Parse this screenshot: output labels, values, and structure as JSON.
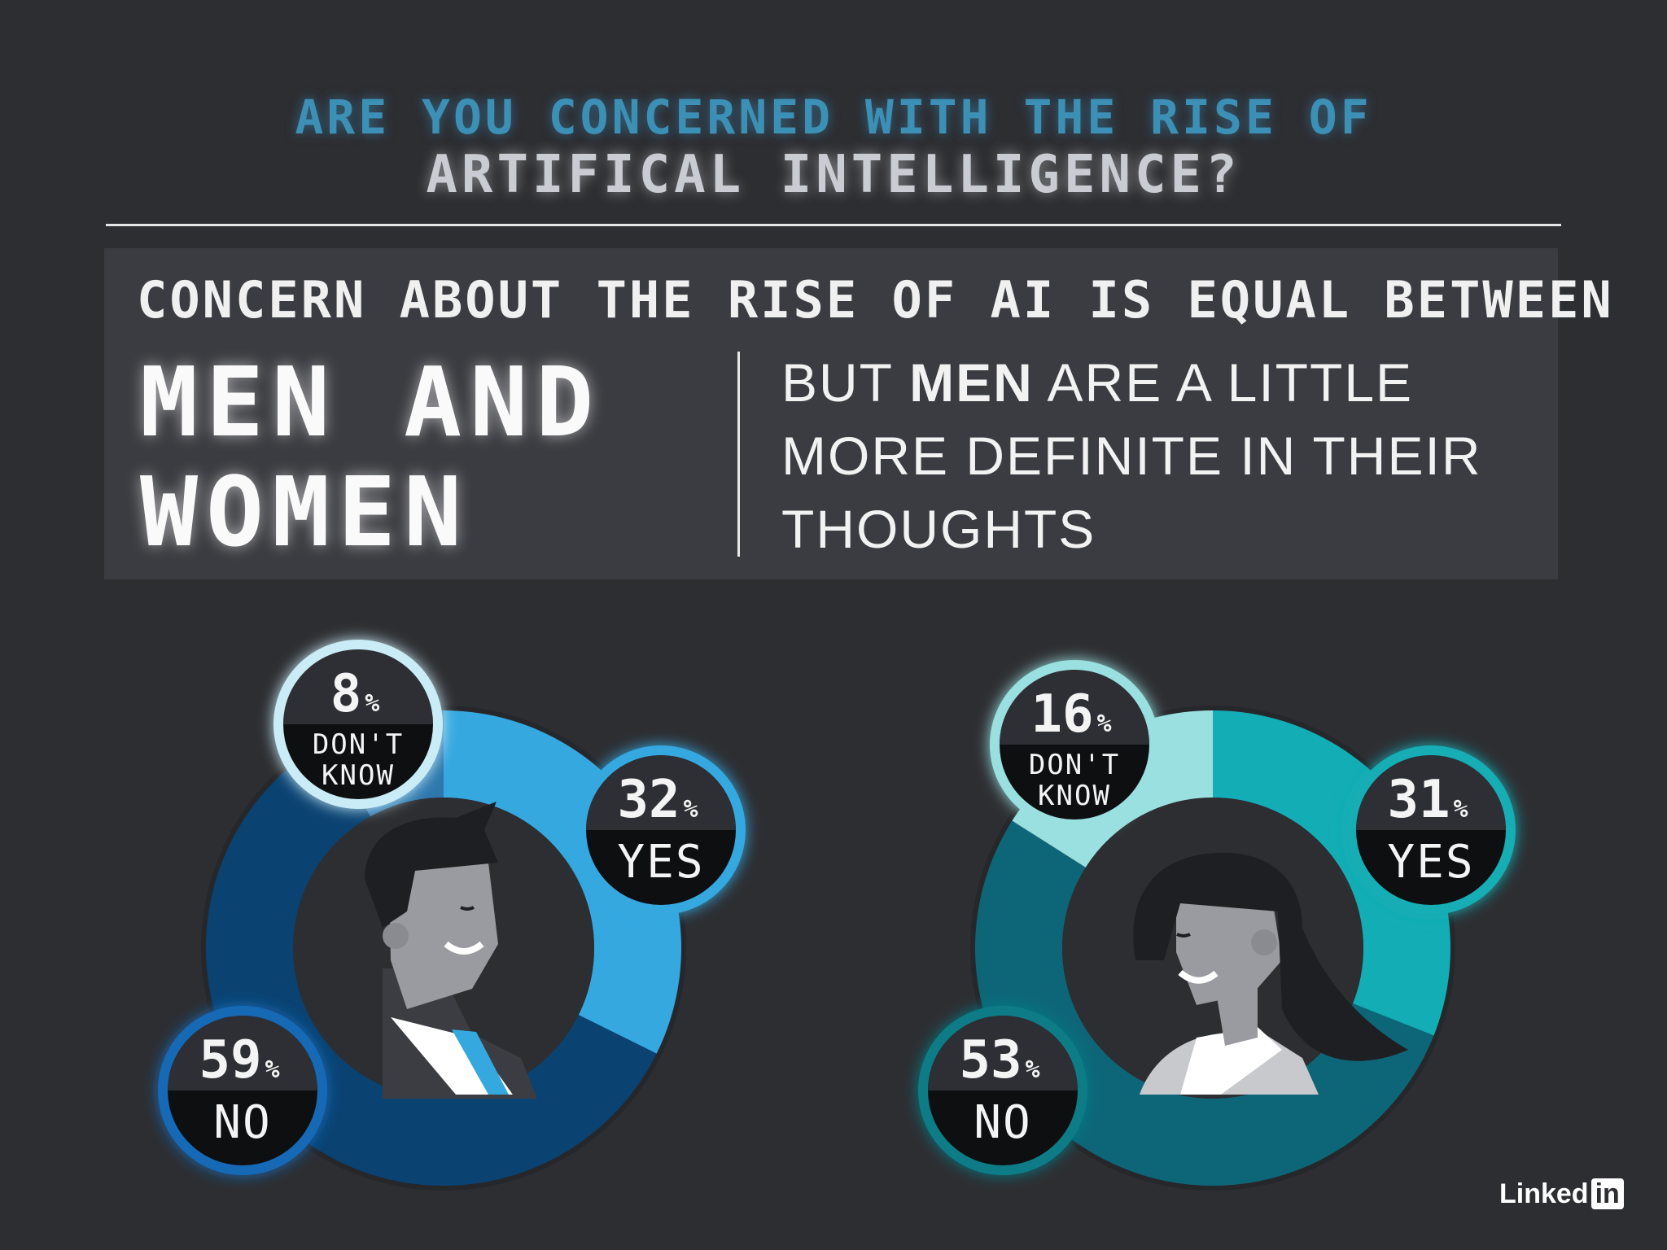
{
  "header": {
    "question_line1": "ARE YOU CONCERNED WITH THE RISE OF",
    "question_line2": "ARTIFICAL INTELLIGENCE?"
  },
  "panel": {
    "headline": "CONCERN ABOUT THE RISE OF AI IS EQUAL BETWEEN",
    "big_line1": "MEN AND",
    "big_line2": "WOMEN",
    "sub_before": "BUT ",
    "sub_bold": "MEN",
    "sub_after": " ARE A LITTLE MORE DEFINITE IN THEIR THOUGHTS"
  },
  "chart_data": [
    {
      "type": "pie",
      "subject": "men",
      "categories": [
        "YES",
        "NO",
        "DON'T KNOW"
      ],
      "values": [
        32,
        59,
        8
      ],
      "unit": "%",
      "colors": [
        "#35a8e0",
        "#0a4272",
        "#2d77ad"
      ],
      "bubble_colors": [
        "#35a8e0",
        "#1869b5",
        "#c9ecf6"
      ]
    },
    {
      "type": "pie",
      "subject": "women",
      "categories": [
        "YES",
        "NO",
        "DON'T KNOW"
      ],
      "values": [
        31,
        53,
        16
      ],
      "unit": "%",
      "colors": [
        "#13adb5",
        "#0d6677",
        "#9ae0e0"
      ],
      "bubble_colors": [
        "#13adb5",
        "#0d7c86",
        "#9ae0e0"
      ]
    }
  ],
  "logo": {
    "text": "Linked",
    "box": "in"
  }
}
